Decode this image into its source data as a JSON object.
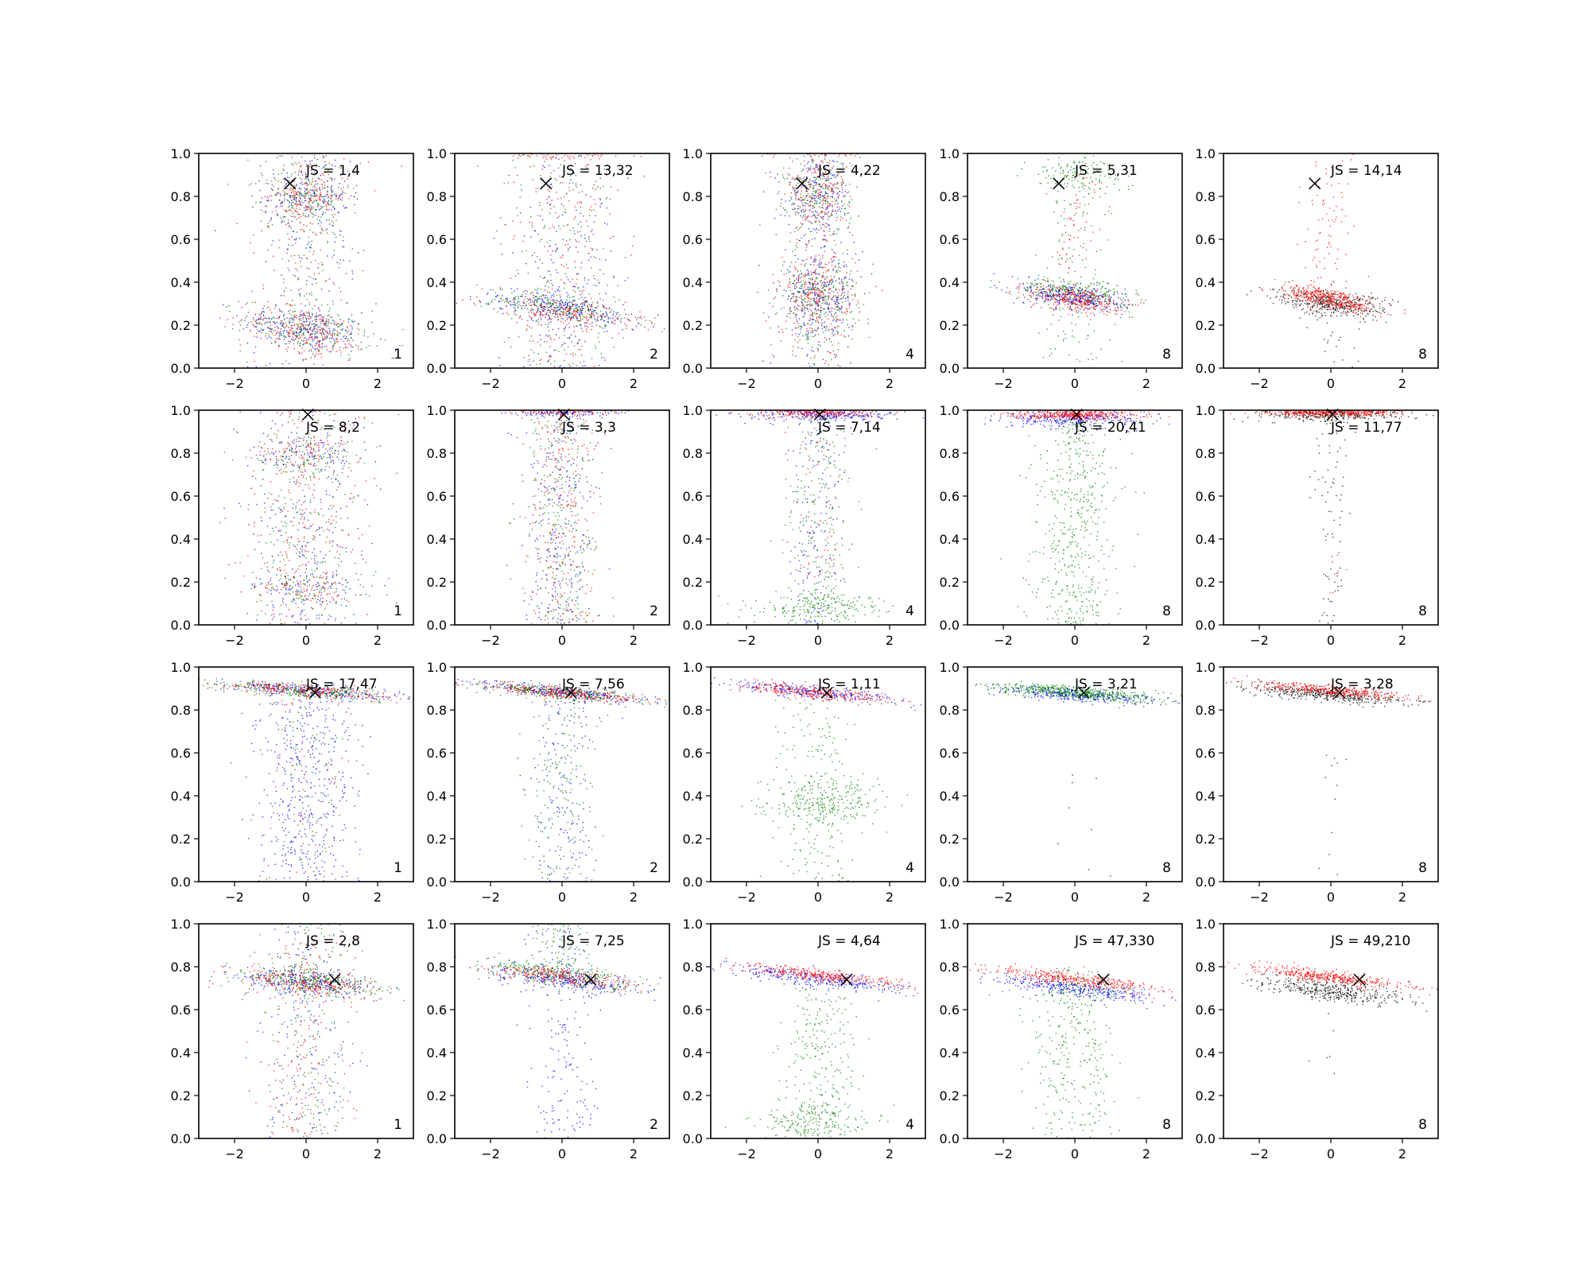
{
  "chart_data": {
    "type": "scatter",
    "layout": "4x5 grid of subplots",
    "x_ticks": [
      "−2",
      "0",
      "2"
    ],
    "y_ticks": [
      "0.0",
      "0.2",
      "0.4",
      "0.6",
      "0.8",
      "1.0"
    ],
    "xlim": [
      -3,
      3
    ],
    "ylim": [
      0,
      1
    ],
    "series_colors": {
      "blue": "#0000ff",
      "green": "#008000",
      "red": "#ff0000",
      "black": "#000000"
    },
    "marker_label": "X marker",
    "panels": [
      {
        "row": 1,
        "col": 1,
        "js_label": "JS = 1,4",
        "n_label": "1",
        "marker": {
          "x": -0.45,
          "y": 0.86
        },
        "mode": "a"
      },
      {
        "row": 1,
        "col": 2,
        "js_label": "JS = 13,32",
        "n_label": "2",
        "marker": {
          "x": -0.45,
          "y": 0.86
        },
        "mode": "b"
      },
      {
        "row": 1,
        "col": 3,
        "js_label": "JS = 4,22",
        "n_label": "4",
        "marker": {
          "x": -0.45,
          "y": 0.86
        },
        "mode": "c"
      },
      {
        "row": 1,
        "col": 4,
        "js_label": "JS = 5,31",
        "n_label": "8",
        "marker": {
          "x": -0.45,
          "y": 0.86
        },
        "mode": "d"
      },
      {
        "row": 1,
        "col": 5,
        "js_label": "JS = 14,14",
        "n_label": "8",
        "marker": {
          "x": -0.45,
          "y": 0.86
        },
        "mode": "e"
      },
      {
        "row": 2,
        "col": 1,
        "js_label": "JS = 8,2",
        "n_label": "1",
        "marker": {
          "x": 0.05,
          "y": 0.98
        },
        "mode": "f"
      },
      {
        "row": 2,
        "col": 2,
        "js_label": "JS = 3,3",
        "n_label": "2",
        "marker": {
          "x": 0.05,
          "y": 0.98
        },
        "mode": "g"
      },
      {
        "row": 2,
        "col": 3,
        "js_label": "JS = 7,14",
        "n_label": "4",
        "marker": {
          "x": 0.05,
          "y": 0.98
        },
        "mode": "h"
      },
      {
        "row": 2,
        "col": 4,
        "js_label": "JS = 20,41",
        "n_label": "8",
        "marker": {
          "x": 0.05,
          "y": 0.98
        },
        "mode": "i"
      },
      {
        "row": 2,
        "col": 5,
        "js_label": "JS = 11,77",
        "n_label": "8",
        "marker": {
          "x": 0.05,
          "y": 0.98
        },
        "mode": "j"
      },
      {
        "row": 3,
        "col": 1,
        "js_label": "JS = 17,47",
        "n_label": "1",
        "marker": {
          "x": 0.25,
          "y": 0.88
        },
        "mode": "k"
      },
      {
        "row": 3,
        "col": 2,
        "js_label": "JS = 7,56",
        "n_label": "2",
        "marker": {
          "x": 0.25,
          "y": 0.88
        },
        "mode": "l"
      },
      {
        "row": 3,
        "col": 3,
        "js_label": "JS = 1,11",
        "n_label": "4",
        "marker": {
          "x": 0.25,
          "y": 0.88
        },
        "mode": "m"
      },
      {
        "row": 3,
        "col": 4,
        "js_label": "JS = 3,21",
        "n_label": "8",
        "marker": {
          "x": 0.25,
          "y": 0.88
        },
        "mode": "n"
      },
      {
        "row": 3,
        "col": 5,
        "js_label": "JS = 3,28",
        "n_label": "8",
        "marker": {
          "x": 0.25,
          "y": 0.88
        },
        "mode": "o"
      },
      {
        "row": 4,
        "col": 1,
        "js_label": "JS = 2,8",
        "n_label": "1",
        "marker": {
          "x": 0.8,
          "y": 0.74
        },
        "mode": "p"
      },
      {
        "row": 4,
        "col": 2,
        "js_label": "JS = 7,25",
        "n_label": "2",
        "marker": {
          "x": 0.8,
          "y": 0.74
        },
        "mode": "q"
      },
      {
        "row": 4,
        "col": 3,
        "js_label": "JS = 4,64",
        "n_label": "4",
        "marker": {
          "x": 0.8,
          "y": 0.74
        },
        "mode": "r"
      },
      {
        "row": 4,
        "col": 4,
        "js_label": "JS = 47,330",
        "n_label": "8",
        "marker": {
          "x": 0.8,
          "y": 0.74
        },
        "mode": "s"
      },
      {
        "row": 4,
        "col": 5,
        "js_label": "JS = 49,210",
        "n_label": "8",
        "marker": {
          "x": 0.8,
          "y": 0.74
        },
        "mode": "t"
      }
    ]
  }
}
